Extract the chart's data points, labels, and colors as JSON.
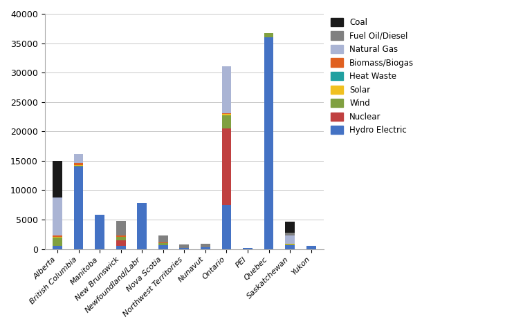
{
  "provinces": [
    "Alberta",
    "British Columbia",
    "Manitoba",
    "New Brunswick",
    "Newfoundland/Labr",
    "Nova Scotia",
    "Northwest Territories",
    "Nunavut",
    "Ontario",
    "PEI",
    "Quebec",
    "Saskatchewan",
    "Yukon"
  ],
  "series_order": [
    "Hydro Electric",
    "Nuclear",
    "Wind",
    "Solar",
    "Heat Waste",
    "Biomass/Biogas",
    "Natural Gas",
    "Fuel Oil/Diesel",
    "Coal"
  ],
  "series": {
    "Hydro Electric": [
      500,
      14000,
      5800,
      500,
      7800,
      600,
      150,
      350,
      7500,
      150,
      36000,
      700,
      550
    ],
    "Nuclear": [
      0,
      0,
      0,
      1000,
      0,
      0,
      0,
      0,
      13000,
      0,
      0,
      0,
      0
    ],
    "Wind": [
      1500,
      200,
      0,
      600,
      0,
      400,
      0,
      0,
      2200,
      0,
      700,
      100,
      0
    ],
    "Solar": [
      100,
      50,
      0,
      0,
      0,
      0,
      0,
      0,
      250,
      0,
      0,
      50,
      0
    ],
    "Heat Waste": [
      0,
      0,
      0,
      0,
      0,
      0,
      0,
      0,
      0,
      0,
      0,
      0,
      0
    ],
    "Biomass/Biogas": [
      200,
      400,
      0,
      200,
      0,
      150,
      0,
      0,
      150,
      0,
      0,
      0,
      0
    ],
    "Natural Gas": [
      6500,
      1500,
      0,
      0,
      0,
      0,
      0,
      0,
      8000,
      0,
      0,
      1500,
      0
    ],
    "Fuel Oil/Diesel": [
      0,
      0,
      0,
      2500,
      0,
      1200,
      600,
      500,
      0,
      0,
      0,
      400,
      0
    ],
    "Coal": [
      6200,
      0,
      0,
      0,
      0,
      0,
      0,
      0,
      0,
      0,
      0,
      1900,
      0
    ]
  },
  "colors": {
    "Coal": "#1a1a1a",
    "Fuel Oil/Diesel": "#808080",
    "Natural Gas": "#aab4d4",
    "Biomass/Biogas": "#e06020",
    "Heat Waste": "#20a0a0",
    "Solar": "#f0c020",
    "Wind": "#80a040",
    "Nuclear": "#c04040",
    "Hydro Electric": "#4472c4"
  },
  "ylim": [
    0,
    40000
  ],
  "yticks": [
    0,
    5000,
    10000,
    15000,
    20000,
    25000,
    30000,
    35000,
    40000
  ],
  "background_color": "#ffffff",
  "grid_color": "#c8c8c8"
}
